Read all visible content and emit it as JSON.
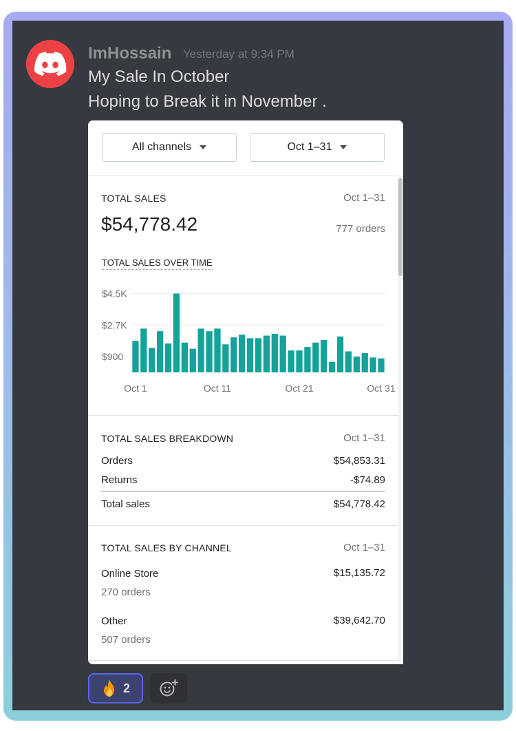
{
  "message": {
    "username": "ImHossain",
    "timestamp": "Yesterday at 9:34 PM",
    "lines": [
      "My Sale In October",
      "Hoping to Break it in November ."
    ]
  },
  "report": {
    "filters": {
      "channel": "All channels",
      "date_range": "Oct 1–31"
    },
    "total_sales": {
      "title": "TOTAL SALES",
      "date": "Oct 1–31",
      "value": "$54,778.42",
      "orders": "777 orders"
    },
    "chart_title": "TOTAL SALES OVER TIME",
    "breakdown": {
      "title": "TOTAL SALES BREAKDOWN",
      "date": "Oct 1–31",
      "rows": [
        {
          "label": "Orders",
          "value": "$54,853.31"
        },
        {
          "label": "Returns",
          "value": "-$74.89"
        }
      ],
      "total": {
        "label": "Total sales",
        "value": "$54,778.42"
      }
    },
    "by_channel": {
      "title": "TOTAL SALES BY CHANNEL",
      "date": "Oct 1–31",
      "channels": [
        {
          "name": "Online Store",
          "value": "$15,135.72",
          "orders": "270 orders"
        },
        {
          "name": "Other",
          "value": "$39,642.70",
          "orders": "507 orders"
        }
      ]
    }
  },
  "chart_data": {
    "type": "bar",
    "categories": [
      "Oct 1",
      "Oct 2",
      "Oct 3",
      "Oct 4",
      "Oct 5",
      "Oct 6",
      "Oct 7",
      "Oct 8",
      "Oct 9",
      "Oct 10",
      "Oct 11",
      "Oct 12",
      "Oct 13",
      "Oct 14",
      "Oct 15",
      "Oct 16",
      "Oct 17",
      "Oct 18",
      "Oct 19",
      "Oct 20",
      "Oct 21",
      "Oct 22",
      "Oct 23",
      "Oct 24",
      "Oct 25",
      "Oct 26",
      "Oct 27",
      "Oct 28",
      "Oct 29",
      "Oct 30",
      "Oct 31"
    ],
    "values": [
      1800,
      2500,
      1400,
      2350,
      1650,
      4500,
      1700,
      1350,
      2500,
      2350,
      2500,
      1600,
      2000,
      2150,
      1950,
      1950,
      2100,
      2200,
      2100,
      1250,
      1250,
      1450,
      1700,
      1850,
      600,
      2050,
      1200,
      900,
      1100,
      850,
      800
    ],
    "ytick_labels": [
      "$900",
      "$2.7K",
      "$4.5K"
    ],
    "ytick_values": [
      900,
      2700,
      4500
    ],
    "xtick_labels": [
      "Oct 1",
      "Oct 11",
      "Oct 21",
      "Oct 31"
    ],
    "xtick_indices": [
      0,
      10,
      20,
      30
    ],
    "ylim": [
      0,
      4950
    ],
    "grid": true,
    "color": "#13a39b"
  },
  "reactions": [
    {
      "icon": "fire-icon",
      "count": "2"
    }
  ],
  "colors": {
    "chat_bg": "#36393f",
    "avatar_bg": "#ed4245",
    "reaction_border": "#5865f2",
    "bar": "#13a39b"
  }
}
